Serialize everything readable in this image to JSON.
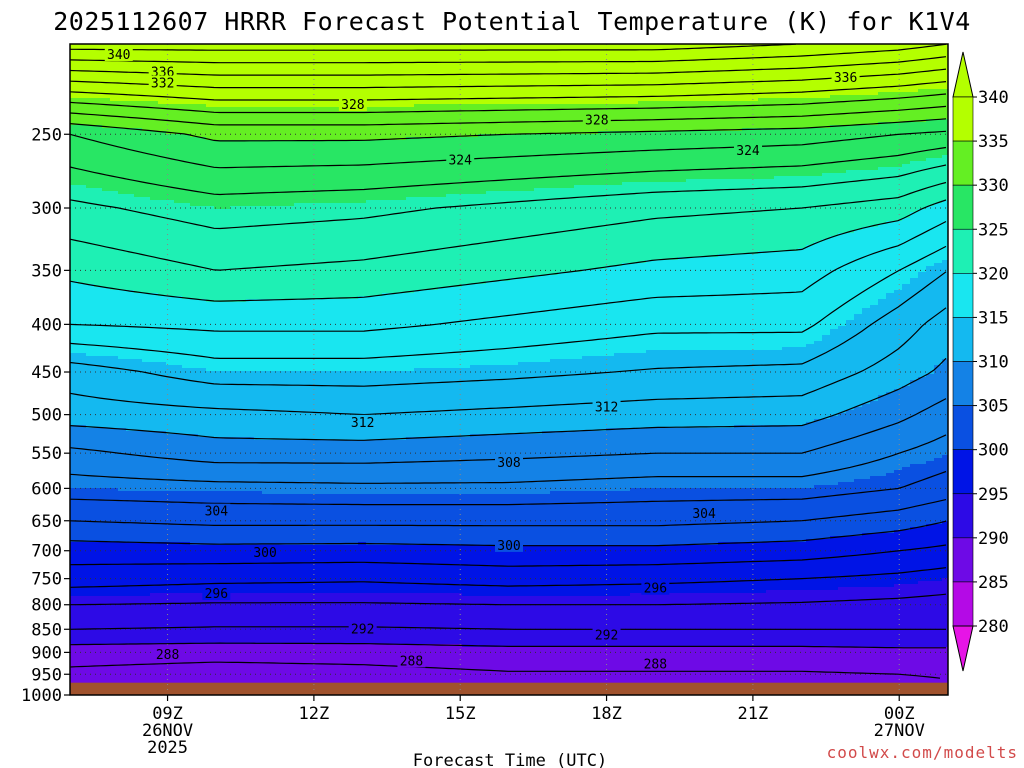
{
  "chart_data": {
    "type": "heatmap",
    "title": "2025112607 HRRR Forecast Potential Temperature (K) for K1V4",
    "xlabel": "Forecast Time (UTC)",
    "credit": "coolwx.com/modelts",
    "x_ticks": [
      {
        "hour": 9,
        "lines": [
          "09Z",
          "26NOV",
          "2025"
        ]
      },
      {
        "hour": 12,
        "lines": [
          "12Z"
        ]
      },
      {
        "hour": 15,
        "lines": [
          "15Z"
        ]
      },
      {
        "hour": 18,
        "lines": [
          "18Z"
        ]
      },
      {
        "hour": 21,
        "lines": [
          "21Z"
        ]
      },
      {
        "hour": 24,
        "lines": [
          "00Z",
          "27NOV"
        ]
      }
    ],
    "xlim": [
      7,
      25
    ],
    "ylim": [
      1000,
      200
    ],
    "y_scale": "log",
    "y_ticks": [
      250,
      300,
      350,
      400,
      450,
      500,
      550,
      600,
      650,
      700,
      750,
      800,
      850,
      900,
      950,
      1000
    ],
    "grid": "dotted",
    "colorbar": {
      "labels": [
        340,
        335,
        330,
        325,
        320,
        315,
        310,
        305,
        300,
        295,
        290,
        285,
        280
      ],
      "bands": [
        {
          "from": 335,
          "to": 340,
          "color": "#b4ff00"
        },
        {
          "from": 330,
          "to": 335,
          "color": "#64ef23"
        },
        {
          "from": 325,
          "to": 330,
          "color": "#28e664"
        },
        {
          "from": 320,
          "to": 325,
          "color": "#1ef0b4"
        },
        {
          "from": 315,
          "to": 320,
          "color": "#19e6f0"
        },
        {
          "from": 310,
          "to": 315,
          "color": "#14b9f0"
        },
        {
          "from": 305,
          "to": 310,
          "color": "#1482e6"
        },
        {
          "from": 300,
          "to": 305,
          "color": "#0a50e1"
        },
        {
          "from": 295,
          "to": 300,
          "color": "#0014e6"
        },
        {
          "from": 290,
          "to": 295,
          "color": "#2d0ae6"
        },
        {
          "from": 285,
          "to": 290,
          "color": "#6e0ae6"
        },
        {
          "from": 280,
          "to": 285,
          "color": "#b40ae6"
        }
      ],
      "over_color": "#b4ff00",
      "under_color": "#e614e6"
    },
    "ground_color": "#a0522d",
    "theta_profiles": [
      {
        "hour": 7,
        "levels": [
          1000,
          950,
          900,
          850,
          800,
          750,
          700,
          650,
          600,
          550,
          500,
          450,
          400,
          350,
          300,
          250,
          200
        ],
        "theta": [
          285.5,
          287.5,
          289.0,
          292.0,
          294.0,
          297.0,
          299.0,
          302.0,
          305.0,
          307.5,
          311.0,
          313.0,
          318.0,
          320.5,
          323.5,
          328.0,
          345.0
        ]
      },
      {
        "hour": 10,
        "levels": [
          1000,
          950,
          900,
          850,
          800,
          750,
          700,
          650,
          600,
          550,
          500,
          450,
          400,
          350,
          300,
          250,
          200
        ],
        "theta": [
          285.3,
          287.0,
          288.8,
          291.8,
          293.8,
          296.5,
          299.3,
          302.5,
          305.3,
          309.0,
          311.5,
          315.0,
          318.5,
          322.0,
          325.0,
          330.5,
          345.0
        ]
      },
      {
        "hour": 13,
        "levels": [
          1000,
          950,
          900,
          850,
          800,
          750,
          700,
          650,
          600,
          550,
          500,
          450,
          400,
          350,
          300,
          250,
          200
        ],
        "theta": [
          285.6,
          287.3,
          288.9,
          291.8,
          293.8,
          296.3,
          299.2,
          302.5,
          305.5,
          309.0,
          312.0,
          315.0,
          318.5,
          321.5,
          324.5,
          330.5,
          345.0
        ]
      },
      {
        "hour": 16,
        "levels": [
          1000,
          950,
          900,
          850,
          800,
          750,
          700,
          650,
          600,
          550,
          500,
          450,
          400,
          350,
          300,
          250,
          200
        ],
        "theta": [
          286.0,
          287.8,
          289.3,
          292.0,
          294.0,
          296.8,
          299.5,
          302.5,
          305.5,
          308.5,
          311.5,
          314.5,
          317.5,
          320.5,
          323.5,
          330.0,
          345.0
        ]
      },
      {
        "hour": 19,
        "levels": [
          1000,
          950,
          900,
          850,
          800,
          750,
          700,
          650,
          600,
          550,
          500,
          450,
          400,
          350,
          300,
          250,
          200
        ],
        "theta": [
          286.0,
          287.8,
          289.3,
          292.0,
          294.0,
          296.5,
          299.5,
          302.5,
          305.0,
          308.0,
          311.0,
          313.8,
          316.5,
          319.5,
          322.5,
          329.5,
          345.0
        ]
      },
      {
        "hour": 22,
        "levels": [
          1000,
          950,
          900,
          850,
          800,
          750,
          700,
          650,
          600,
          550,
          500,
          450,
          400,
          350,
          300,
          250,
          200
        ],
        "theta": [
          286.0,
          287.8,
          289.3,
          292.0,
          293.8,
          296.0,
          299.0,
          302.0,
          305.0,
          308.0,
          310.8,
          313.5,
          316.5,
          319.0,
          322.0,
          329.0,
          344.0
        ]
      },
      {
        "hour": 24,
        "levels": [
          1000,
          950,
          900,
          850,
          800,
          750,
          700,
          650,
          600,
          550,
          500,
          450,
          400,
          350,
          300,
          250,
          200
        ],
        "theta": [
          286.5,
          288.0,
          289.5,
          292.0,
          293.5,
          295.5,
          298.0,
          301.0,
          304.0,
          306.0,
          308.5,
          311.0,
          313.0,
          316.0,
          321.0,
          328.0,
          343.0
        ]
      },
      {
        "hour": 25,
        "levels": [
          1000,
          950,
          900,
          850,
          800,
          750,
          700,
          650,
          600,
          550,
          500,
          450,
          400,
          350,
          300,
          250,
          200
        ],
        "theta": [
          287.0,
          288.3,
          289.5,
          292.0,
          293.3,
          295.0,
          297.5,
          300.0,
          303.0,
          305.0,
          307.0,
          309.5,
          311.0,
          314.0,
          319.0,
          327.5,
          342.0
        ]
      }
    ],
    "contour_labels": [
      {
        "value": 340,
        "hour": 8.0,
        "level": 205
      },
      {
        "value": 336,
        "hour": 8.9,
        "level": 214
      },
      {
        "value": 336,
        "hour": 22.9,
        "level": 217
      },
      {
        "value": 332,
        "hour": 8.9,
        "level": 220
      },
      {
        "value": 328,
        "hour": 12.8,
        "level": 232
      },
      {
        "value": 328,
        "hour": 17.8,
        "level": 241
      },
      {
        "value": 324,
        "hour": 15.0,
        "level": 266
      },
      {
        "value": 324,
        "hour": 20.9,
        "level": 260
      },
      {
        "value": 312,
        "hour": 13.0,
        "level": 509
      },
      {
        "value": 312,
        "hour": 18.0,
        "level": 490
      },
      {
        "value": 308,
        "hour": 16.0,
        "level": 562
      },
      {
        "value": 304,
        "hour": 10.0,
        "level": 634
      },
      {
        "value": 304,
        "hour": 20.0,
        "level": 638
      },
      {
        "value": 300,
        "hour": 11.0,
        "level": 702
      },
      {
        "value": 300,
        "hour": 16.0,
        "level": 690
      },
      {
        "value": 296,
        "hour": 10.0,
        "level": 777
      },
      {
        "value": 296,
        "hour": 19.0,
        "level": 767
      },
      {
        "value": 292,
        "hour": 13.0,
        "level": 848
      },
      {
        "value": 292,
        "hour": 18.0,
        "level": 861
      },
      {
        "value": 288,
        "hour": 9.0,
        "level": 904
      },
      {
        "value": 288,
        "hour": 14.0,
        "level": 918
      },
      {
        "value": 288,
        "hour": 19.0,
        "level": 925
      }
    ]
  }
}
